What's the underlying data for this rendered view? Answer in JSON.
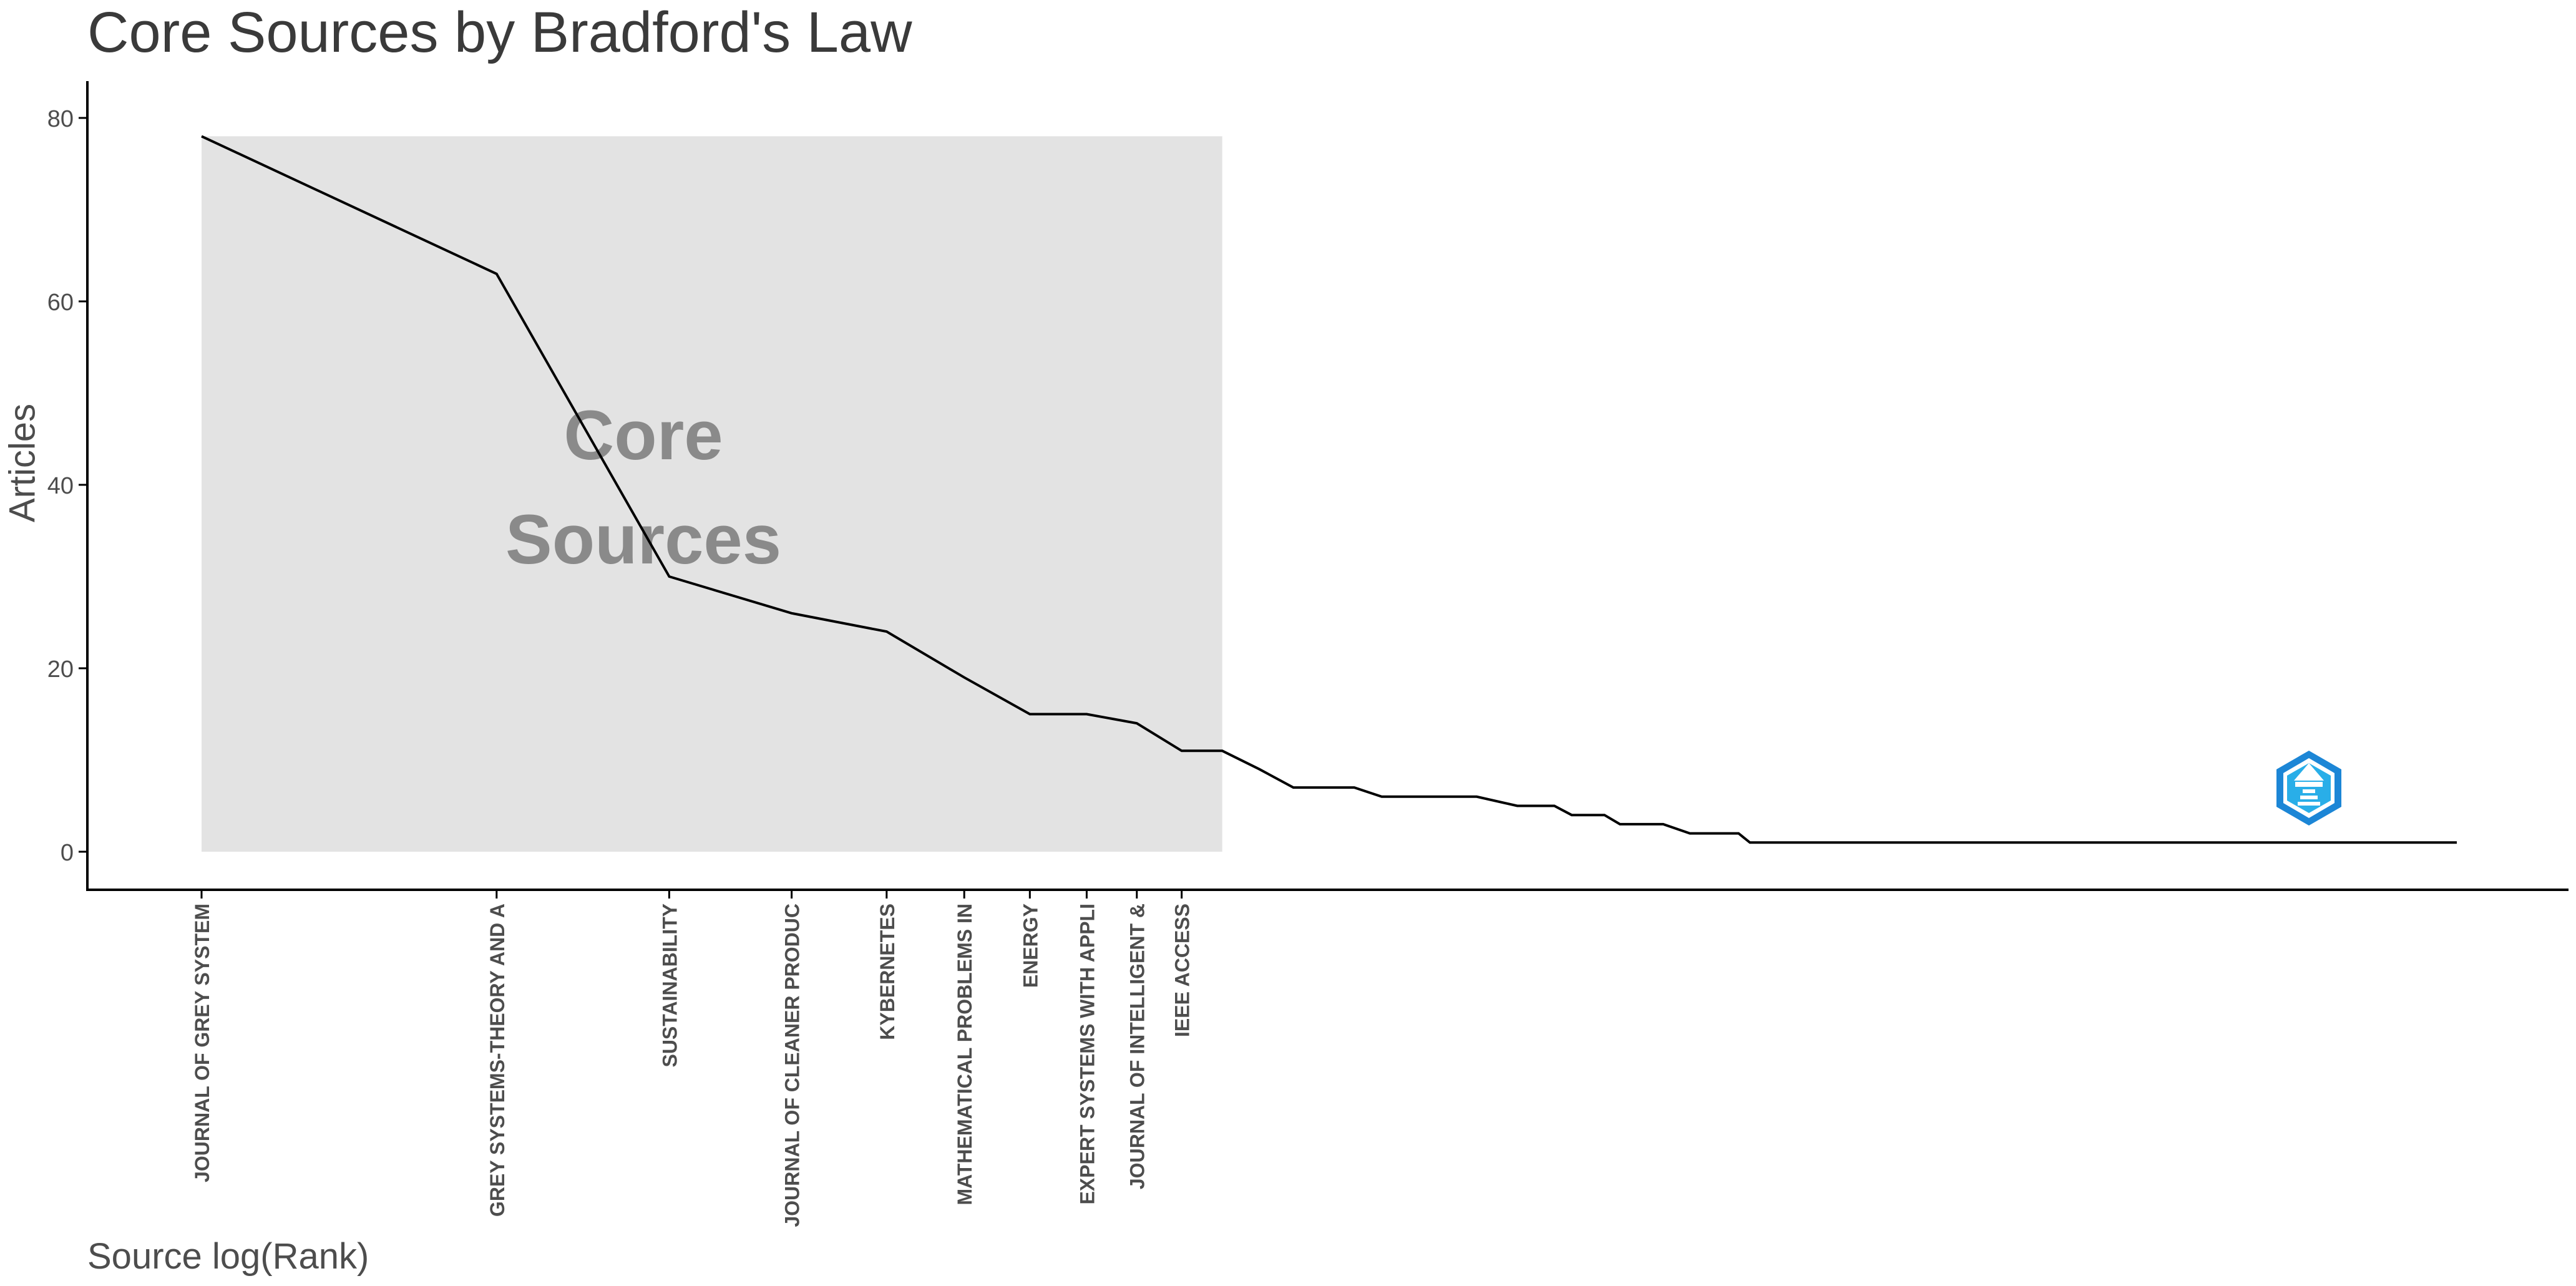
{
  "chart_data": {
    "type": "line",
    "title": "Core Sources by Bradford's Law",
    "xlabel": "Source log(Rank)",
    "ylabel": "Articles",
    "ylim": [
      0,
      80
    ],
    "yticks": [
      0,
      20,
      40,
      60,
      80
    ],
    "x_scale": "log",
    "grid": false,
    "core_zone": {
      "label_line1": "Core",
      "label_line2": "Sources",
      "ranks": [
        1,
        11
      ],
      "articles": [
        0,
        78
      ]
    },
    "categories": [
      "JOURNAL OF GREY SYSTEM",
      "GREY SYSTEMS-THEORY AND A",
      "SUSTAINABILITY",
      "JOURNAL OF CLEANER PRODUC",
      "KYBERNETES",
      "MATHEMATICAL PROBLEMS IN",
      "ENERGY",
      "EXPERT SYSTEMS WITH APPLI",
      "JOURNAL OF INTELLIGENT &",
      "IEEE ACCESS"
    ],
    "series": [
      {
        "rank": [
          1,
          2,
          3,
          4,
          5,
          6,
          7,
          8,
          9,
          10,
          11,
          12,
          13,
          14,
          15,
          16,
          17,
          18,
          19,
          20,
          22,
          24,
          25,
          27,
          28,
          31,
          33,
          37,
          38,
          80,
          82,
          200
        ],
        "articles": [
          78,
          63,
          30,
          26,
          24,
          19,
          15,
          15,
          14,
          11,
          11,
          9,
          7,
          7,
          7,
          6,
          6,
          6,
          6,
          6,
          5,
          5,
          4,
          4,
          3,
          3,
          2,
          2,
          1,
          1,
          1,
          1
        ]
      }
    ]
  }
}
